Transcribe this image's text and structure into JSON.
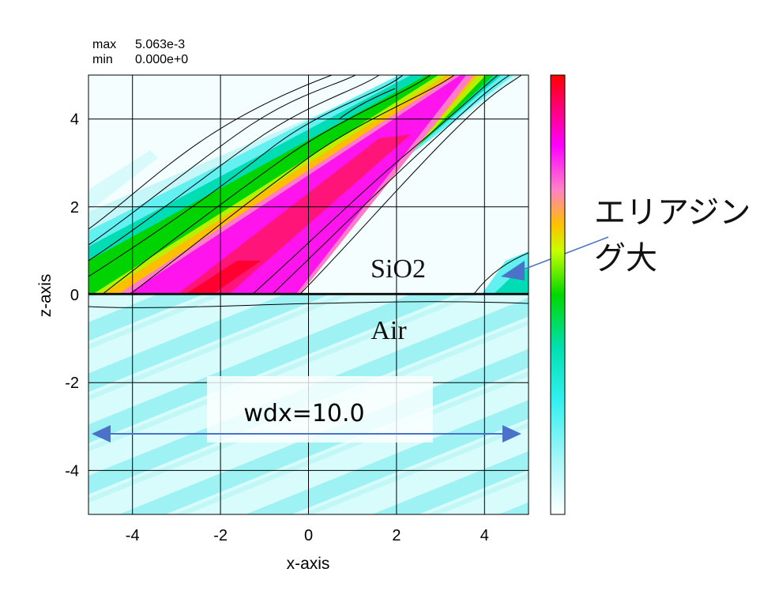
{
  "header": {
    "max_label": "max",
    "max_value": "5.063e-3",
    "min_label": "min",
    "min_value": "0.000e+0"
  },
  "chart_data": {
    "type": "heatmap",
    "title": "",
    "xlabel": "x-axis",
    "ylabel": "z-axis",
    "xlim": [
      -5,
      5
    ],
    "ylim": [
      -5,
      5
    ],
    "x_ticks": [
      "-4",
      "-2",
      "0",
      "2",
      "4"
    ],
    "y_ticks": [
      "4",
      "2",
      "0",
      "-2",
      "-4"
    ],
    "x_tick_values": [
      -4,
      -2,
      0,
      2,
      4
    ],
    "y_tick_values": [
      4,
      2,
      0,
      -2,
      -4
    ],
    "grid": true,
    "value_range": [
      0,
      0.005063
    ],
    "colormap": [
      "#ffffff",
      "#66ffff",
      "#00e8d0",
      "#00d800",
      "#c8ff00",
      "#ffc000",
      "#ff80c8",
      "#ff00ff",
      "#ff0000"
    ],
    "interface_z": 0,
    "legend": "right (color scale)",
    "annotations": {
      "upper_medium": "SiO2",
      "lower_medium": "Air",
      "callout": "エリアジング大",
      "width_label": "wdx=10.0"
    }
  }
}
